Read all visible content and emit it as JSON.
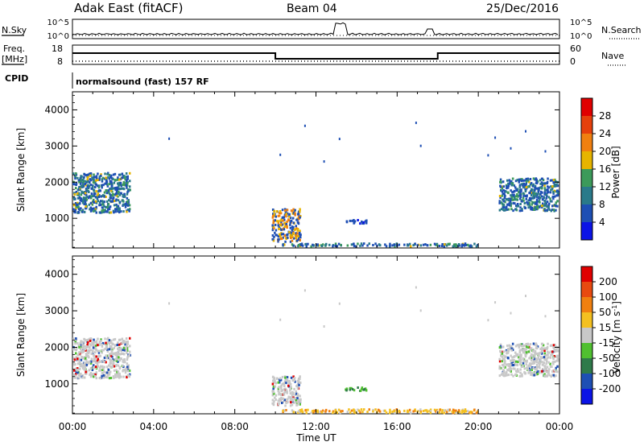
{
  "header": {
    "station": "Adak East (fitACF)",
    "beam": "Beam 04",
    "date": "25/Dec/2016"
  },
  "top_panels": {
    "noise_left": "N.Sky",
    "noise_right": "N.Search",
    "noise_ticks_left": [
      "10^5",
      "10^0"
    ],
    "noise_ticks_right": [
      "10^5",
      "10^0"
    ],
    "freq_label": "Freq.",
    "freq_unit": "[MHz]",
    "freq_ticks": [
      "18",
      "8"
    ],
    "nave_label": "Nave",
    "nave_ticks": [
      "60",
      "0"
    ],
    "cpid_label": "CPID",
    "cpid_text": "normalsound (fast) 157 RF"
  },
  "chart_data": [
    {
      "type": "heatmap",
      "title": "",
      "xlabel": "Time UT",
      "ylabel": "Slant Range [km]",
      "x_range_hours": [
        0,
        24
      ],
      "x_ticks": [
        "00:00",
        "04:00",
        "08:00",
        "12:00",
        "16:00",
        "20:00",
        "00:00"
      ],
      "ylim": [
        180,
        4500
      ],
      "y_ticks": [
        1000,
        2000,
        3000,
        4000
      ],
      "colorbar": {
        "label": "Power [dB]",
        "ticks": [
          "4",
          "8",
          "12",
          "16",
          "20",
          "24",
          "28"
        ]
      },
      "colors": [
        "#0b14e6",
        "#1e4fb4",
        "#2a7a8a",
        "#3c9a5a",
        "#e6b400",
        "#f08010",
        "#e6400c",
        "#e00000"
      ],
      "regions": [
        {
          "t": [
            0.0,
            2.8
          ],
          "range": [
            1150,
            2250
          ],
          "dominant": "blue-green"
        },
        {
          "t": [
            9.8,
            11.2
          ],
          "range": [
            350,
            1250
          ],
          "dominant": "blue-yellow"
        },
        {
          "t": [
            10.2,
            20.0
          ],
          "range": [
            220,
            300
          ],
          "dominant": "blue-green"
        },
        {
          "t": [
            13.4,
            14.6
          ],
          "range": [
            850,
            950
          ],
          "dominant": "blue"
        },
        {
          "t": [
            21.0,
            23.9
          ],
          "range": [
            1200,
            2100
          ],
          "dominant": "blue-green"
        }
      ]
    },
    {
      "type": "heatmap",
      "title": "",
      "xlabel": "Time UT",
      "ylabel": "Slant Range [km]",
      "x_range_hours": [
        0,
        24
      ],
      "x_ticks": [
        "00:00",
        "04:00",
        "08:00",
        "12:00",
        "16:00",
        "20:00",
        "00:00"
      ],
      "ylim": [
        180,
        4500
      ],
      "y_ticks": [
        1000,
        2000,
        3000,
        4000
      ],
      "colorbar": {
        "label": "Velocity [m s^-1]",
        "ticks": [
          "200",
          "100",
          "50",
          "15",
          "-15",
          "-50",
          "-100",
          "-200"
        ]
      },
      "colors": [
        "#0b14e6",
        "#1e4fb4",
        "#2f7a4a",
        "#50c030",
        "#c8c8c8",
        "#f4c020",
        "#f08010",
        "#e84a10",
        "#e00000"
      ],
      "regions": [
        {
          "t": [
            0.0,
            2.8
          ],
          "range": [
            1150,
            2250
          ],
          "dominant": "grey"
        },
        {
          "t": [
            9.8,
            11.2
          ],
          "range": [
            400,
            1200
          ],
          "dominant": "grey"
        },
        {
          "t": [
            10.2,
            20.0
          ],
          "range": [
            200,
            300
          ],
          "dominant": "orange"
        },
        {
          "t": [
            13.4,
            14.6
          ],
          "range": [
            800,
            900
          ],
          "dominant": "green"
        },
        {
          "t": [
            21.0,
            23.9
          ],
          "range": [
            1200,
            2100
          ],
          "dominant": "grey"
        }
      ]
    }
  ],
  "xlabel": "Time UT"
}
